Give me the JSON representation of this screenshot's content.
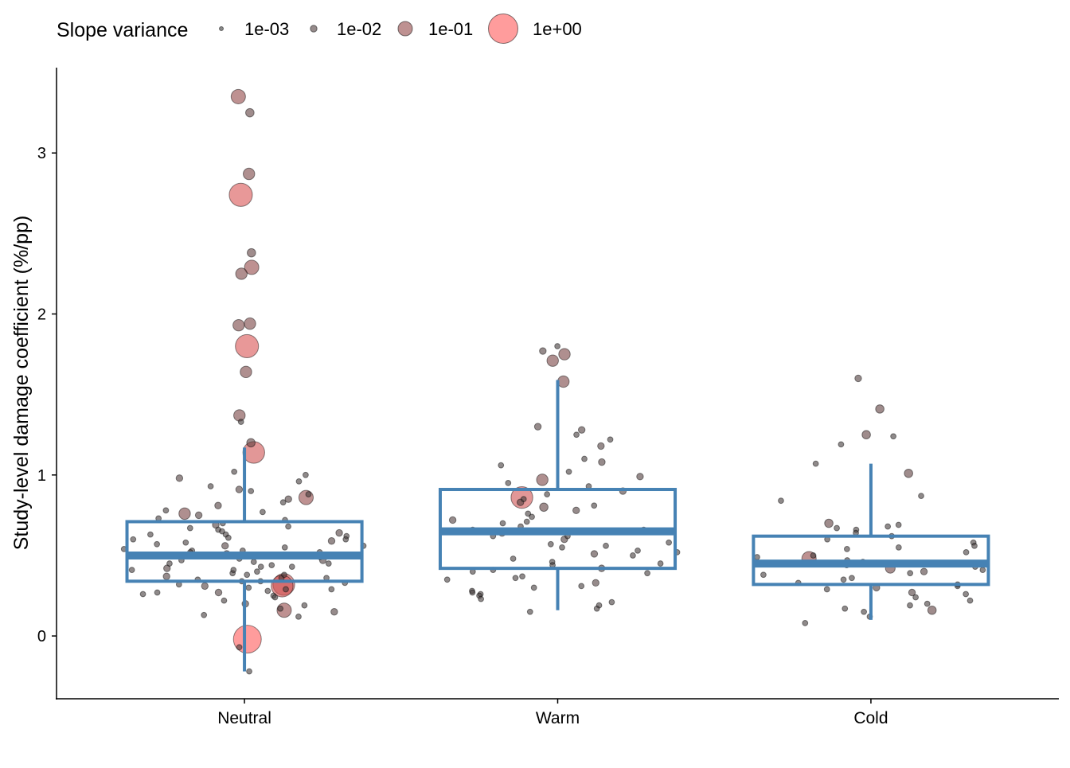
{
  "chart_data": {
    "type": "scatter",
    "subtype": "jittered points over boxplot",
    "ylabel": "Study-level damage coefficient (%/pp)",
    "xlabel": "",
    "categories": [
      "Neutral",
      "Warm",
      "Cold"
    ],
    "y_ticks": [
      0,
      1,
      2,
      3
    ],
    "ylim": [
      -0.39,
      3.53
    ],
    "grid": false,
    "legend": {
      "title": "Slope variance",
      "placement": "top",
      "entries": [
        {
          "label": "1e-03",
          "value": 0.001
        },
        {
          "label": "1e-02",
          "value": 0.01
        },
        {
          "label": "1e-01",
          "value": 0.1
        },
        {
          "label": "1e+00",
          "value": 1
        }
      ]
    },
    "colors": {
      "box": "#4682b4",
      "low_variance": "#3a3a3a",
      "high_variance": "#ff5a5a"
    },
    "boxes": [
      {
        "category": "Neutral",
        "lower_whisker": -0.22,
        "q1": 0.34,
        "median": 0.5,
        "q3": 0.71,
        "upper_whisker": 1.17
      },
      {
        "category": "Warm",
        "lower_whisker": 0.16,
        "q1": 0.42,
        "median": 0.65,
        "q3": 0.91,
        "upper_whisker": 1.59
      },
      {
        "category": "Cold",
        "lower_whisker": 0.1,
        "q1": 0.32,
        "median": 0.45,
        "q3": 0.62,
        "upper_whisker": 1.07
      }
    ],
    "points": {
      "Neutral": [
        [
          3.35,
          0.1
        ],
        [
          3.25,
          0.02
        ],
        [
          2.87,
          0.05
        ],
        [
          2.74,
          0.5
        ],
        [
          2.38,
          0.02
        ],
        [
          2.29,
          0.1
        ],
        [
          2.25,
          0.05
        ],
        [
          1.94,
          0.05
        ],
        [
          1.93,
          0.05
        ],
        [
          1.8,
          0.5
        ],
        [
          1.64,
          0.05
        ],
        [
          1.37,
          0.05
        ],
        [
          1.33,
          0.005
        ],
        [
          1.2,
          0.02
        ],
        [
          1.14,
          0.4
        ],
        [
          -0.02,
          1.0
        ],
        [
          -0.22,
          0.005
        ],
        [
          -0.07,
          0.005
        ],
        [
          0.32,
          0.4
        ],
        [
          0.31,
          0.4
        ],
        [
          0.16,
          0.1
        ],
        [
          0.86,
          0.1
        ],
        [
          0.76,
          0.05
        ],
        [
          1.02,
          0.005
        ],
        [
          1.0,
          0.005
        ],
        [
          0.98,
          0.01
        ],
        [
          0.96,
          0.005
        ],
        [
          0.93,
          0.005
        ],
        [
          0.91,
          0.01
        ],
        [
          0.9,
          0.005
        ],
        [
          0.88,
          0.005
        ],
        [
          0.85,
          0.01
        ],
        [
          0.83,
          0.005
        ],
        [
          0.81,
          0.01
        ],
        [
          0.78,
          0.005
        ],
        [
          0.77,
          0.005
        ],
        [
          0.75,
          0.01
        ],
        [
          0.73,
          0.005
        ],
        [
          0.72,
          0.005
        ],
        [
          0.7,
          0.005
        ],
        [
          0.69,
          0.01
        ],
        [
          0.68,
          0.005
        ],
        [
          0.67,
          0.005
        ],
        [
          0.66,
          0.005
        ],
        [
          0.65,
          0.005
        ],
        [
          0.64,
          0.01
        ],
        [
          0.63,
          0.005
        ],
        [
          0.62,
          0.005
        ],
        [
          0.61,
          0.005
        ],
        [
          0.6,
          0.005
        ],
        [
          0.59,
          0.01
        ],
        [
          0.58,
          0.005
        ],
        [
          0.57,
          0.005
        ],
        [
          0.56,
          0.01
        ],
        [
          0.55,
          0.005
        ],
        [
          0.54,
          0.005
        ],
        [
          0.53,
          0.005
        ],
        [
          0.52,
          0.005
        ],
        [
          0.51,
          0.01
        ],
        [
          0.5,
          0.005
        ],
        [
          0.5,
          0.005
        ],
        [
          0.49,
          0.005
        ],
        [
          0.48,
          0.005
        ],
        [
          0.47,
          0.01
        ],
        [
          0.46,
          0.005
        ],
        [
          0.45,
          0.005
        ],
        [
          0.44,
          0.005
        ],
        [
          0.43,
          0.005
        ],
        [
          0.42,
          0.01
        ],
        [
          0.41,
          0.005
        ],
        [
          0.4,
          0.005
        ],
        [
          0.39,
          0.005
        ],
        [
          0.38,
          0.005
        ],
        [
          0.37,
          0.01
        ],
        [
          0.36,
          0.005
        ],
        [
          0.35,
          0.005
        ],
        [
          0.34,
          0.005
        ],
        [
          0.33,
          0.005
        ],
        [
          0.32,
          0.005
        ],
        [
          0.31,
          0.01
        ],
        [
          0.3,
          0.005
        ],
        [
          0.29,
          0.005
        ],
        [
          0.28,
          0.005
        ],
        [
          0.27,
          0.01
        ],
        [
          0.26,
          0.005
        ],
        [
          0.25,
          0.005
        ],
        [
          0.24,
          0.005
        ],
        [
          0.22,
          0.005
        ],
        [
          0.2,
          0.01
        ],
        [
          0.19,
          0.005
        ],
        [
          0.17,
          0.005
        ],
        [
          0.15,
          0.01
        ],
        [
          0.13,
          0.005
        ],
        [
          0.12,
          0.005
        ],
        [
          0.56,
          0.005
        ],
        [
          0.53,
          0.005
        ],
        [
          0.45,
          0.005
        ],
        [
          0.43,
          0.005
        ],
        [
          0.38,
          0.005
        ],
        [
          0.36,
          0.005
        ],
        [
          0.34,
          0.005
        ],
        [
          0.29,
          0.005
        ],
        [
          0.27,
          0.005
        ],
        [
          0.6,
          0.005
        ],
        [
          0.63,
          0.005
        ],
        [
          0.47,
          0.005
        ],
        [
          0.41,
          0.005
        ],
        [
          0.52,
          0.005
        ]
      ],
      "Warm": [
        [
          1.8,
          0.005
        ],
        [
          1.77,
          0.01
        ],
        [
          1.75,
          0.05
        ],
        [
          1.71,
          0.05
        ],
        [
          1.58,
          0.05
        ],
        [
          1.3,
          0.01
        ],
        [
          1.28,
          0.01
        ],
        [
          1.25,
          0.005
        ],
        [
          1.22,
          0.005
        ],
        [
          1.18,
          0.01
        ],
        [
          1.1,
          0.005
        ],
        [
          1.08,
          0.01
        ],
        [
          1.06,
          0.005
        ],
        [
          1.02,
          0.005
        ],
        [
          0.99,
          0.01
        ],
        [
          0.97,
          0.05
        ],
        [
          0.86,
          0.4
        ],
        [
          0.8,
          0.02
        ],
        [
          0.78,
          0.01
        ],
        [
          0.95,
          0.005
        ],
        [
          0.93,
          0.005
        ],
        [
          0.9,
          0.01
        ],
        [
          0.88,
          0.005
        ],
        [
          0.85,
          0.005
        ],
        [
          0.83,
          0.01
        ],
        [
          0.81,
          0.005
        ],
        [
          0.76,
          0.005
        ],
        [
          0.74,
          0.005
        ],
        [
          0.72,
          0.01
        ],
        [
          0.7,
          0.005
        ],
        [
          0.68,
          0.005
        ],
        [
          0.66,
          0.005
        ],
        [
          0.64,
          0.01
        ],
        [
          0.62,
          0.005
        ],
        [
          0.6,
          0.01
        ],
        [
          0.58,
          0.005
        ],
        [
          0.56,
          0.005
        ],
        [
          0.55,
          0.005
        ],
        [
          0.53,
          0.005
        ],
        [
          0.51,
          0.01
        ],
        [
          0.5,
          0.005
        ],
        [
          0.48,
          0.005
        ],
        [
          0.46,
          0.005
        ],
        [
          0.44,
          0.005
        ],
        [
          0.42,
          0.01
        ],
        [
          0.4,
          0.005
        ],
        [
          0.39,
          0.005
        ],
        [
          0.37,
          0.005
        ],
        [
          0.35,
          0.005
        ],
        [
          0.33,
          0.01
        ],
        [
          0.31,
          0.005
        ],
        [
          0.3,
          0.005
        ],
        [
          0.28,
          0.005
        ],
        [
          0.26,
          0.005
        ],
        [
          0.25,
          0.005
        ],
        [
          0.23,
          0.005
        ],
        [
          0.21,
          0.005
        ],
        [
          0.19,
          0.005
        ],
        [
          0.17,
          0.005
        ],
        [
          0.15,
          0.005
        ],
        [
          0.62,
          0.005
        ],
        [
          0.57,
          0.005
        ],
        [
          0.45,
          0.005
        ],
        [
          0.36,
          0.005
        ],
        [
          0.27,
          0.005
        ],
        [
          0.66,
          0.005
        ],
        [
          0.71,
          0.005
        ],
        [
          0.52,
          0.005
        ],
        [
          0.41,
          0.005
        ]
      ],
      "Cold": [
        [
          1.6,
          0.01
        ],
        [
          1.41,
          0.02
        ],
        [
          1.25,
          0.02
        ],
        [
          1.24,
          0.005
        ],
        [
          1.19,
          0.005
        ],
        [
          1.07,
          0.005
        ],
        [
          1.01,
          0.02
        ],
        [
          0.87,
          0.005
        ],
        [
          0.84,
          0.005
        ],
        [
          0.7,
          0.02
        ],
        [
          0.48,
          0.1
        ],
        [
          0.42,
          0.03
        ],
        [
          0.08,
          0.005
        ],
        [
          0.12,
          0.005
        ],
        [
          0.15,
          0.005
        ],
        [
          0.16,
          0.02
        ],
        [
          0.17,
          0.005
        ],
        [
          0.19,
          0.005
        ],
        [
          0.69,
          0.005
        ],
        [
          0.68,
          0.005
        ],
        [
          0.67,
          0.005
        ],
        [
          0.66,
          0.005
        ],
        [
          0.64,
          0.005
        ],
        [
          0.62,
          0.005
        ],
        [
          0.6,
          0.005
        ],
        [
          0.58,
          0.005
        ],
        [
          0.56,
          0.005
        ],
        [
          0.55,
          0.005
        ],
        [
          0.54,
          0.005
        ],
        [
          0.52,
          0.005
        ],
        [
          0.5,
          0.005
        ],
        [
          0.49,
          0.005
        ],
        [
          0.47,
          0.005
        ],
        [
          0.45,
          0.01
        ],
        [
          0.44,
          0.005
        ],
        [
          0.43,
          0.005
        ],
        [
          0.41,
          0.005
        ],
        [
          0.4,
          0.01
        ],
        [
          0.38,
          0.005
        ],
        [
          0.36,
          0.005
        ],
        [
          0.35,
          0.005
        ],
        [
          0.33,
          0.005
        ],
        [
          0.31,
          0.005
        ],
        [
          0.3,
          0.01
        ],
        [
          0.29,
          0.005
        ],
        [
          0.27,
          0.01
        ],
        [
          0.26,
          0.005
        ],
        [
          0.24,
          0.005
        ],
        [
          0.22,
          0.005
        ],
        [
          0.2,
          0.005
        ],
        [
          0.46,
          0.005
        ],
        [
          0.39,
          0.005
        ],
        [
          0.32,
          0.005
        ]
      ]
    }
  }
}
